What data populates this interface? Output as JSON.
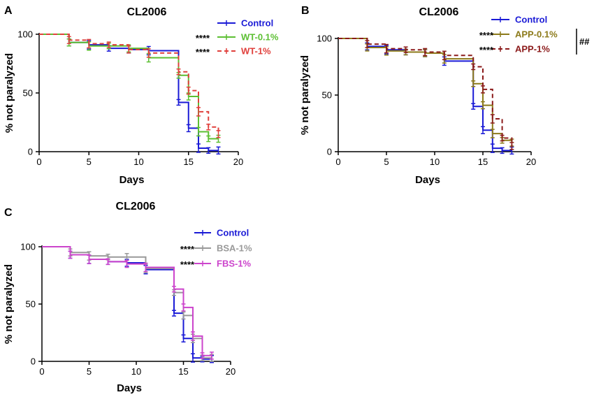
{
  "chart_data": [
    {
      "panel": "A",
      "type": "line",
      "title": "CL2006",
      "xlabel": "Days",
      "ylabel": "% not paralyzed",
      "xlim": [
        0,
        20
      ],
      "ylim": [
        0,
        100
      ],
      "xticks": [
        0,
        5,
        10,
        15,
        20
      ],
      "yticks": [
        0,
        50,
        100
      ],
      "legend_position": "top-right",
      "series": [
        {
          "name": "Control",
          "color": "#1a1ad6",
          "dashed": false,
          "significance": "",
          "steps": [
            [
              0,
              100
            ],
            [
              3,
              93
            ],
            [
              5,
              91
            ],
            [
              7,
              88
            ],
            [
              9,
              87
            ],
            [
              11,
              86
            ],
            [
              14,
              42
            ],
            [
              15,
              20
            ],
            [
              16,
              3
            ],
            [
              17,
              1
            ],
            [
              18,
              1
            ]
          ]
        },
        {
          "name": "WT-0.1%",
          "color": "#5cbf32",
          "dashed": false,
          "significance": "****",
          "steps": [
            [
              0,
              100
            ],
            [
              3,
              93
            ],
            [
              5,
              90
            ],
            [
              7,
              90
            ],
            [
              9,
              88
            ],
            [
              11,
              80
            ],
            [
              14,
              65
            ],
            [
              15,
              47
            ],
            [
              16,
              17
            ],
            [
              17,
              11
            ],
            [
              18,
              11
            ]
          ]
        },
        {
          "name": "WT-1%",
          "color": "#e0403c",
          "dashed": true,
          "significance": "****",
          "steps": [
            [
              0,
              100
            ],
            [
              3,
              95
            ],
            [
              5,
              92
            ],
            [
              7,
              91
            ],
            [
              9,
              87
            ],
            [
              11,
              84
            ],
            [
              14,
              68
            ],
            [
              15,
              52
            ],
            [
              16,
              34
            ],
            [
              17,
              21
            ],
            [
              18,
              15
            ]
          ]
        }
      ],
      "bracket_label": ""
    },
    {
      "panel": "B",
      "type": "line",
      "title": "CL2006",
      "xlabel": "Days",
      "ylabel": "% not paralyzed",
      "xlim": [
        0,
        20
      ],
      "ylim": [
        0,
        100
      ],
      "xticks": [
        0,
        5,
        10,
        15,
        20
      ],
      "yticks": [
        0,
        50,
        100
      ],
      "legend_position": "top-right",
      "series": [
        {
          "name": "Control",
          "color": "#1a1ad6",
          "dashed": false,
          "significance": "",
          "steps": [
            [
              0,
              100
            ],
            [
              3,
              93
            ],
            [
              5,
              90
            ],
            [
              7,
              88
            ],
            [
              9,
              87
            ],
            [
              11,
              80
            ],
            [
              14,
              40
            ],
            [
              15,
              19
            ],
            [
              16,
              3
            ],
            [
              17,
              1
            ],
            [
              18,
              1
            ]
          ]
        },
        {
          "name": "APP-0.1%",
          "color": "#8c7a1a",
          "dashed": false,
          "significance": "****",
          "steps": [
            [
              0,
              100
            ],
            [
              3,
              92
            ],
            [
              5,
              89
            ],
            [
              7,
              88
            ],
            [
              9,
              87
            ],
            [
              11,
              82
            ],
            [
              14,
              60
            ],
            [
              15,
              41
            ],
            [
              16,
              16
            ],
            [
              17,
              10
            ],
            [
              18,
              8
            ]
          ]
        },
        {
          "name": "APP-1%",
          "color": "#8b1a1a",
          "dashed": true,
          "significance": "****",
          "steps": [
            [
              0,
              100
            ],
            [
              3,
              95
            ],
            [
              5,
              91
            ],
            [
              7,
              90
            ],
            [
              9,
              88
            ],
            [
              11,
              85
            ],
            [
              14,
              75
            ],
            [
              15,
              55
            ],
            [
              16,
              29
            ],
            [
              17,
              12
            ],
            [
              18,
              5
            ]
          ]
        }
      ],
      "bracket_label": "##"
    },
    {
      "panel": "C",
      "type": "line",
      "title": "CL2006",
      "xlabel": "Days",
      "ylabel": "% not paralyzed",
      "xlim": [
        0,
        20
      ],
      "ylim": [
        0,
        100
      ],
      "xticks": [
        0,
        5,
        10,
        15,
        20
      ],
      "yticks": [
        0,
        50,
        100
      ],
      "legend_position": "top-right",
      "series": [
        {
          "name": "Control",
          "color": "#1a1ad6",
          "dashed": false,
          "significance": "",
          "steps": [
            [
              0,
              100
            ],
            [
              3,
              93
            ],
            [
              5,
              89
            ],
            [
              7,
              87
            ],
            [
              9,
              86
            ],
            [
              11,
              80
            ],
            [
              14,
              42
            ],
            [
              15,
              20
            ],
            [
              16,
              3
            ],
            [
              17,
              2
            ],
            [
              18,
              2
            ]
          ]
        },
        {
          "name": "BSA-1%",
          "color": "#999999",
          "dashed": false,
          "significance": "****",
          "steps": [
            [
              0,
              100
            ],
            [
              3,
              95
            ],
            [
              5,
              92
            ],
            [
              7,
              91
            ],
            [
              9,
              91
            ],
            [
              11,
              81
            ],
            [
              14,
              60
            ],
            [
              15,
              40
            ],
            [
              16,
              20
            ],
            [
              17,
              3
            ],
            [
              18,
              3
            ]
          ]
        },
        {
          "name": "FBS-1%",
          "color": "#cc44cc",
          "dashed": false,
          "significance": "****",
          "steps": [
            [
              0,
              100
            ],
            [
              3,
              93
            ],
            [
              5,
              89
            ],
            [
              7,
              87
            ],
            [
              9,
              85
            ],
            [
              11,
              82
            ],
            [
              14,
              63
            ],
            [
              15,
              47
            ],
            [
              16,
              22
            ],
            [
              17,
              5
            ],
            [
              18,
              5
            ]
          ]
        }
      ],
      "bracket_label": ""
    }
  ]
}
